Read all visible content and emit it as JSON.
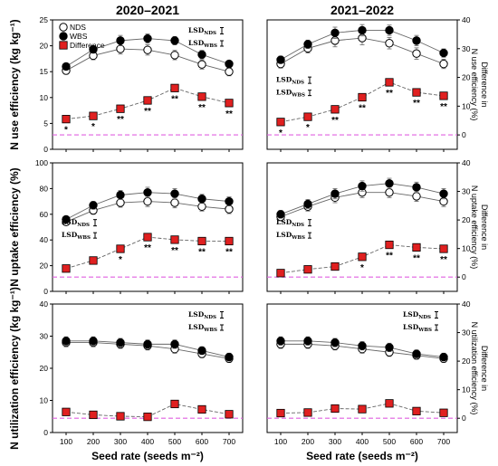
{
  "figure": {
    "column_titles": [
      "2020–2021",
      "2021–2022"
    ],
    "x_label": "Seed rate (seeds m⁻²)",
    "legend": [
      "NDS",
      "WBS",
      "Difference"
    ],
    "colors": {
      "nds_fill": "#ffffff",
      "wbs_fill": "#000000",
      "diff_fill": "#e02020",
      "ref_line": "#e060e0",
      "series_line": "#666666"
    }
  },
  "chart_data": [
    {
      "type": "line",
      "row": 0,
      "col": 0,
      "ylabel": "N use efficiency (kg kg⁻¹)",
      "y2label": "Difference in N use efficiency (%)",
      "x": [
        100,
        200,
        300,
        400,
        500,
        600,
        700
      ],
      "xlim": [
        50,
        750
      ],
      "ylim": [
        0,
        25
      ],
      "y2lim": [
        -5,
        40
      ],
      "yticks": [
        0,
        5,
        10,
        15,
        20,
        25
      ],
      "y2ticks": [],
      "legend": true,
      "legend_position": "top-left",
      "lsd_labels": [
        "LSDNDS",
        "LSDWBS"
      ],
      "lsd_position": "top-right",
      "series": [
        {
          "name": "NDS",
          "values": [
            15.2,
            18.1,
            19.4,
            19.2,
            18.2,
            16.4,
            15.0
          ],
          "err": [
            0.7,
            0.8,
            1.0,
            1.0,
            0.9,
            0.9,
            0.8
          ]
        },
        {
          "name": "WBS",
          "values": [
            16.0,
            19.3,
            21.0,
            21.4,
            21.0,
            18.3,
            16.5
          ],
          "err": [
            0.6,
            0.7,
            1.0,
            0.9,
            0.8,
            0.8,
            0.6
          ]
        },
        {
          "name": "Difference",
          "axis": "y2",
          "values": [
            5.5,
            6.6,
            9.1,
            12.0,
            16.3,
            13.3,
            11.1
          ]
        }
      ],
      "significance": [
        "*",
        "*",
        "**",
        "**",
        "**",
        "**",
        "**"
      ],
      "reference_line_y2": 0
    },
    {
      "type": "line",
      "row": 0,
      "col": 1,
      "ylabel": "N use efficiency (kg kg⁻¹)",
      "y2label": "Difference in N use efficiency (%)",
      "x": [
        100,
        200,
        300,
        400,
        500,
        600,
        700
      ],
      "xlim": [
        50,
        750
      ],
      "ylim": [
        0,
        25
      ],
      "y2lim": [
        -5,
        40
      ],
      "yticks": [],
      "y2ticks": [
        0,
        10,
        20,
        30,
        40
      ],
      "legend": false,
      "lsd_labels": [
        "LSDNDS",
        "LSDWBS"
      ],
      "lsd_position": "middle-left",
      "series": [
        {
          "name": "NDS",
          "values": [
            16.5,
            19.5,
            21.0,
            21.5,
            20.5,
            18.5,
            16.5
          ],
          "err": [
            0.8,
            0.9,
            1.2,
            1.3,
            1.1,
            1.1,
            0.9
          ]
        },
        {
          "name": "WBS",
          "values": [
            17.3,
            20.3,
            22.5,
            23.0,
            23.0,
            21.0,
            18.6
          ],
          "err": [
            0.7,
            0.8,
            1.1,
            1.1,
            1.0,
            1.0,
            0.8
          ]
        },
        {
          "name": "Difference",
          "axis": "y2",
          "values": [
            4.5,
            6.3,
            8.9,
            13.1,
            18.3,
            14.8,
            13.6
          ]
        }
      ],
      "significance": [
        "*",
        "*",
        "**",
        "**",
        "**",
        "**",
        "**"
      ],
      "reference_line_y2": 0
    },
    {
      "type": "line",
      "row": 1,
      "col": 0,
      "ylabel": "N uptake efficiency (%)",
      "y2label": "Difference in N uptake efficiency (%)",
      "x": [
        100,
        200,
        300,
        400,
        500,
        600,
        700
      ],
      "xlim": [
        50,
        750
      ],
      "ylim": [
        0,
        100
      ],
      "y2lim": [
        -5,
        40
      ],
      "yticks": [
        0,
        20,
        40,
        60,
        80,
        100
      ],
      "y2ticks": [],
      "legend": false,
      "lsd_labels": [
        "LSDNDS",
        "LSDWBS"
      ],
      "lsd_position": "middle-left",
      "series": [
        {
          "name": "NDS",
          "values": [
            54,
            63,
            69,
            70,
            69,
            66,
            64
          ],
          "err": [
            2.5,
            3,
            3.5,
            4,
            4,
            3.5,
            3.5
          ]
        },
        {
          "name": "WBS",
          "values": [
            56,
            67,
            75,
            77,
            76,
            72,
            70
          ],
          "err": [
            2.5,
            3,
            3.5,
            4,
            4,
            3.5,
            3.5
          ]
        },
        {
          "name": "Difference",
          "axis": "y2",
          "values": [
            3.0,
            5.8,
            9.9,
            14.0,
            13.1,
            12.6,
            12.6
          ]
        }
      ],
      "significance": [
        "",
        "",
        "*",
        "**",
        "**",
        "**",
        "**"
      ],
      "reference_line_y2": 0
    },
    {
      "type": "line",
      "row": 1,
      "col": 1,
      "ylabel": "N uptake efficiency (%)",
      "y2label": "Difference in N uptake efficiency (%)",
      "x": [
        100,
        200,
        300,
        400,
        500,
        600,
        700
      ],
      "xlim": [
        50,
        750
      ],
      "ylim": [
        0,
        100
      ],
      "y2lim": [
        -5,
        40
      ],
      "yticks": [],
      "y2ticks": [
        0,
        10,
        20,
        30,
        40
      ],
      "legend": false,
      "lsd_labels": [
        "LSDNDS",
        "LSDWBS"
      ],
      "lsd_position": "middle-left",
      "series": [
        {
          "name": "NDS",
          "values": [
            58,
            66,
            73,
            77,
            77,
            74,
            70
          ],
          "err": [
            3,
            3.5,
            4,
            4,
            4,
            4,
            4
          ]
        },
        {
          "name": "WBS",
          "values": [
            60,
            68,
            76,
            82,
            84,
            81,
            76
          ],
          "err": [
            3,
            3.5,
            4,
            4,
            4,
            4,
            4
          ]
        },
        {
          "name": "Difference",
          "axis": "y2",
          "values": [
            1.4,
            2.7,
            3.7,
            7.1,
            11.3,
            10.4,
            9.9
          ]
        }
      ],
      "significance": [
        "",
        "",
        "",
        "*",
        "**",
        "**",
        "**"
      ],
      "reference_line_y2": 0
    },
    {
      "type": "line",
      "row": 2,
      "col": 0,
      "ylabel": "N utilization efficiency (kg kg⁻¹)",
      "y2label": "Difference in N utilization efficiency (%)",
      "x": [
        100,
        200,
        300,
        400,
        500,
        600,
        700
      ],
      "xlim": [
        50,
        750
      ],
      "ylim": [
        0,
        40
      ],
      "y2lim": [
        -5,
        40
      ],
      "yticks": [
        0,
        10,
        20,
        30,
        40
      ],
      "y2ticks": [],
      "legend": false,
      "lsd_labels": [
        "LSDNDS",
        "LSDWBS"
      ],
      "lsd_position": "top-right",
      "series": [
        {
          "name": "NDS",
          "values": [
            28.0,
            28.0,
            27.5,
            27.0,
            26.0,
            24.5,
            23.0
          ],
          "err": [
            1.3,
            1.3,
            1.3,
            1.3,
            1.3,
            1.2,
            1.2
          ]
        },
        {
          "name": "WBS",
          "values": [
            28.5,
            28.5,
            28.0,
            27.5,
            27.5,
            25.5,
            23.5
          ],
          "err": [
            1.3,
            1.3,
            1.3,
            1.3,
            1.3,
            1.2,
            1.2
          ]
        },
        {
          "name": "Difference",
          "axis": "y2",
          "values": [
            2.2,
            1.2,
            0.7,
            0.5,
            5.0,
            3.1,
            1.4
          ]
        }
      ],
      "significance": [
        "",
        "",
        "",
        "",
        "",
        "",
        ""
      ],
      "reference_line_y2": 0
    },
    {
      "type": "line",
      "row": 2,
      "col": 1,
      "ylabel": "N utilization efficiency (kg kg⁻¹)",
      "y2label": "Difference in N utilization efficiency (%)",
      "x": [
        100,
        200,
        300,
        400,
        500,
        600,
        700
      ],
      "xlim": [
        50,
        750
      ],
      "ylim": [
        0,
        40
      ],
      "y2lim": [
        -5,
        40
      ],
      "yticks": [],
      "y2ticks": [
        0,
        10,
        20,
        30,
        40
      ],
      "legend": false,
      "lsd_labels": [
        "LSDNDS",
        "LSDWBS"
      ],
      "lsd_position": "top-right",
      "series": [
        {
          "name": "NDS",
          "values": [
            27.5,
            27.5,
            27.0,
            26.0,
            25.0,
            24.0,
            23.0
          ],
          "err": [
            1.3,
            1.3,
            1.3,
            1.3,
            1.3,
            1.2,
            1.2
          ]
        },
        {
          "name": "WBS",
          "values": [
            28.5,
            28.5,
            28.0,
            27.0,
            26.5,
            24.5,
            23.5
          ],
          "err": [
            1.3,
            1.3,
            1.3,
            1.3,
            1.3,
            1.2,
            1.2
          ]
        },
        {
          "name": "Difference",
          "axis": "y2",
          "values": [
            1.8,
            2.0,
            3.4,
            3.2,
            5.2,
            2.5,
            1.9
          ]
        }
      ],
      "significance": [
        "",
        "",
        "",
        "",
        "",
        "",
        ""
      ],
      "reference_line_y2": 0
    }
  ]
}
